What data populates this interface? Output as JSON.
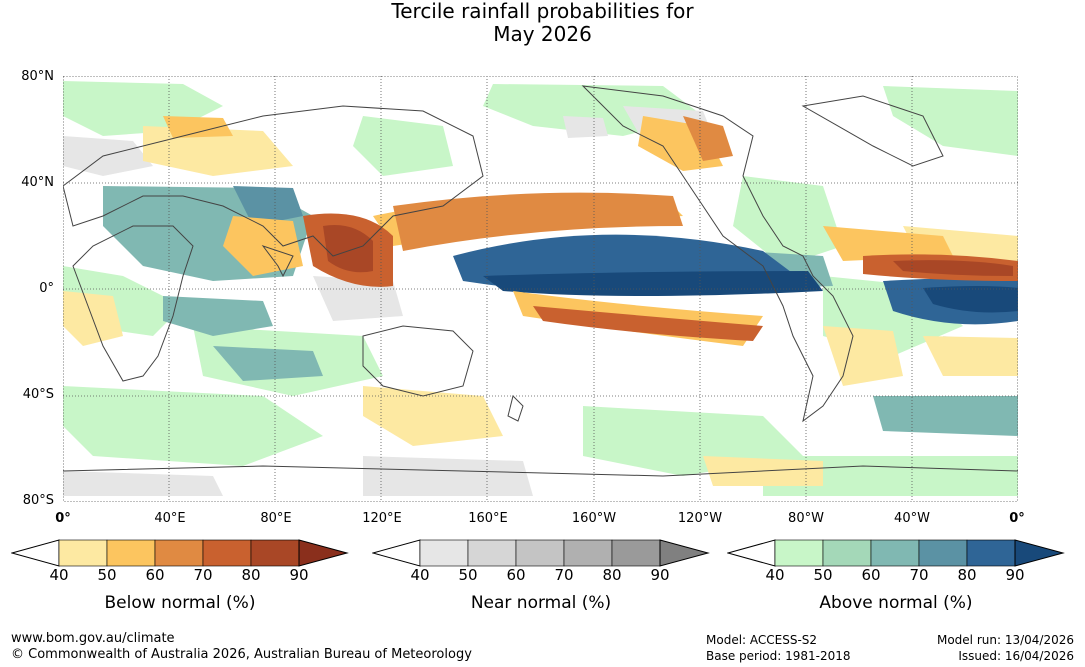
{
  "title": {
    "line1": "Tercile rainfall probabilities for",
    "line2": "May 2026"
  },
  "map": {
    "lat_labels": [
      "80°N",
      "40°N",
      "0°",
      "40°S",
      "80°S"
    ],
    "lon_labels": [
      "0°",
      "40°E",
      "80°E",
      "120°E",
      "160°E",
      "160°W",
      "120°W",
      "80°W",
      "40°W",
      "0°"
    ]
  },
  "legends": [
    {
      "title": "Below normal (%)",
      "ticks": [
        "40",
        "50",
        "60",
        "70",
        "80",
        "90"
      ],
      "colors": [
        "#ffffff",
        "#fde9a2",
        "#fcc55f",
        "#e08a42",
        "#c9612f",
        "#a94726",
        "#8a2f1c"
      ]
    },
    {
      "title": "Near normal (%)",
      "ticks": [
        "40",
        "50",
        "60",
        "70",
        "80",
        "90"
      ],
      "colors": [
        "#ffffff",
        "#e6e6e6",
        "#d6d6d6",
        "#c4c4c4",
        "#b0b0b0",
        "#9a9a9a",
        "#808080"
      ]
    },
    {
      "title": "Above normal (%)",
      "ticks": [
        "40",
        "50",
        "60",
        "70",
        "80",
        "90"
      ],
      "colors": [
        "#ffffff",
        "#c8f6c8",
        "#a4d8b8",
        "#80b8b2",
        "#5b92a4",
        "#2f6596",
        "#18497a"
      ]
    }
  ],
  "footer": {
    "website": "www.bom.gov.au/climate",
    "copyright": "© Commonwealth of Australia 2026, Australian Bureau of Meteorology",
    "model": "Model: ACCESS-S2",
    "base_period": "Base period: 1981-2018",
    "model_run": "Model run: 13/04/2026",
    "issued": "Issued: 16/04/2026"
  }
}
